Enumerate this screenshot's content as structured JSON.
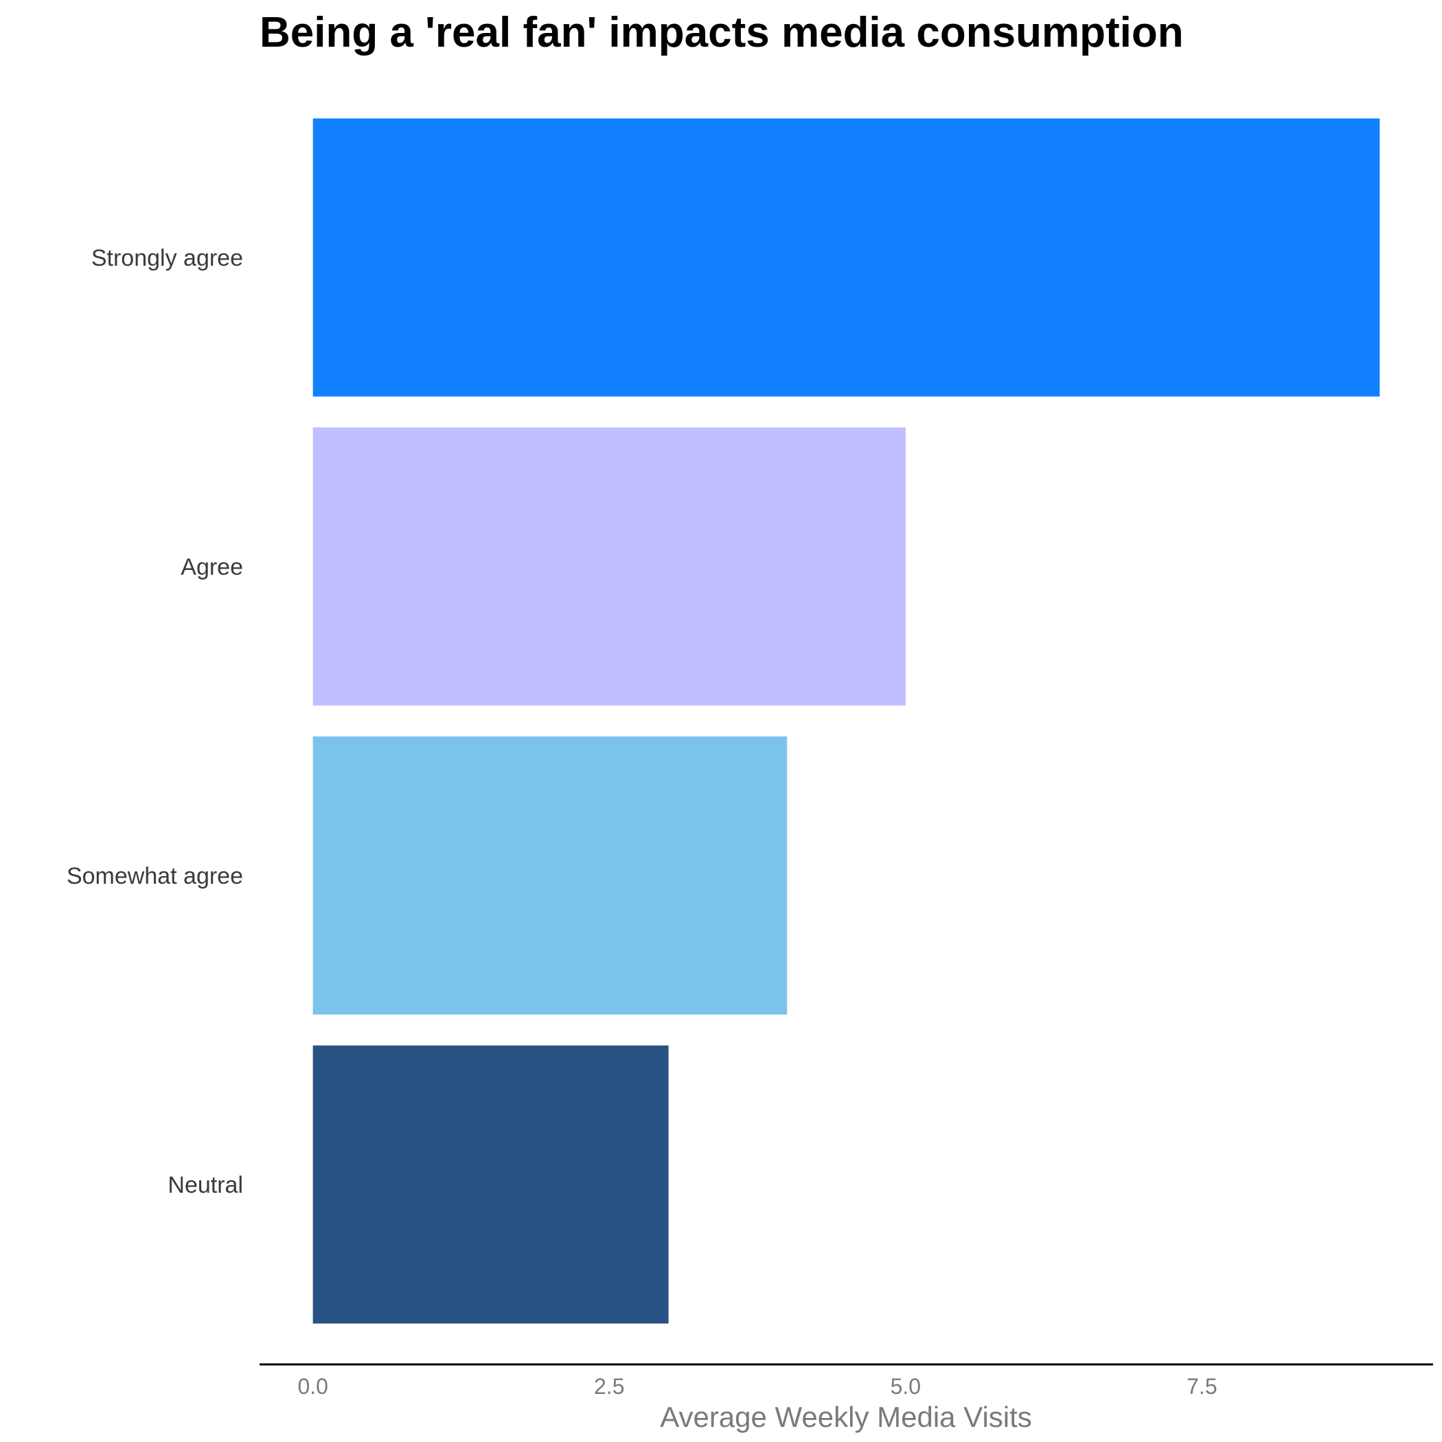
{
  "chart_data": {
    "type": "bar",
    "orientation": "horizontal",
    "title": "Being a 'real fan' impacts media consumption",
    "xlabel": "Average Weekly Media Visits",
    "ylabel": "",
    "categories": [
      "Strongly agree",
      "Agree",
      "Somewhat agree",
      "Neutral"
    ],
    "values": [
      9,
      5,
      4,
      3
    ],
    "colors": [
      "#1180FF",
      "#C0BFFF",
      "#7AC3EB",
      "#285184"
    ],
    "xlim": [
      -0.45,
      9.45
    ],
    "xticks": [
      0.0,
      2.5,
      5.0,
      7.5
    ],
    "xtick_labels": [
      "0.0",
      "2.5",
      "5.0",
      "7.5"
    ],
    "grid": false,
    "legend": "none"
  }
}
